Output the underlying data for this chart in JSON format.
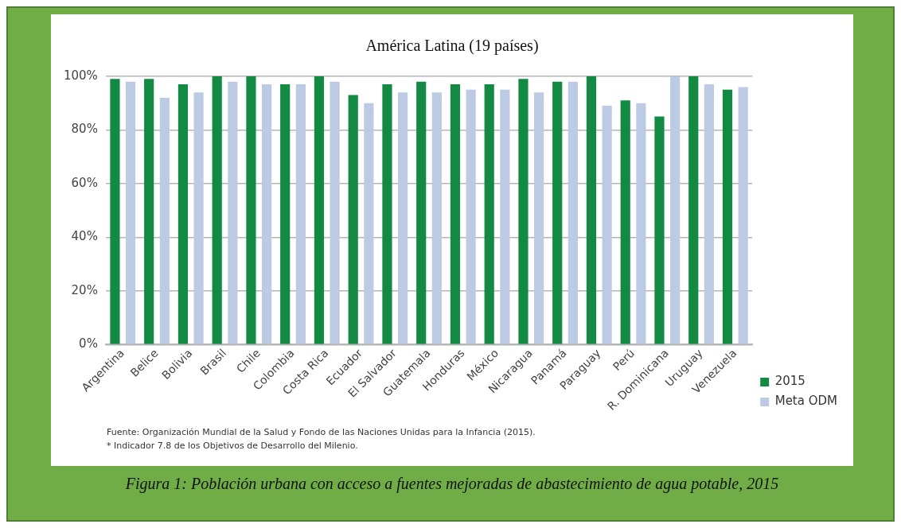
{
  "chart_data": {
    "type": "bar",
    "title": "América Latina (19 países)",
    "categories": [
      "Argentina",
      "Belice",
      "Bolivia",
      "Brasil",
      "Chile",
      "Colombia",
      "Costa Rica",
      "Ecuador",
      "El Salvador",
      "Guatemala",
      "Honduras",
      "México",
      "Nicaragua",
      "Panamá",
      "Paraguay",
      "Perú",
      "R. Dominicana",
      "Uruguay",
      "Venezuela"
    ],
    "series": [
      {
        "name": "2015",
        "color": "#138a43",
        "values": [
          99,
          99,
          97,
          100,
          100,
          97,
          100,
          93,
          97,
          98,
          97,
          97,
          99,
          98,
          100,
          91,
          85,
          100,
          95
        ]
      },
      {
        "name": "Meta ODM",
        "color": "#bccbe3",
        "values": [
          98,
          92,
          94,
          98,
          97,
          97,
          98,
          90,
          94,
          94,
          95,
          95,
          94,
          98,
          89,
          90,
          100,
          97,
          96
        ]
      }
    ],
    "ylim": [
      0,
      100
    ],
    "yticks": [
      {
        "value": 0,
        "label": "0%"
      },
      {
        "value": 20,
        "label": "20%"
      },
      {
        "value": 40,
        "label": "40%"
      },
      {
        "value": 60,
        "label": "60%"
      },
      {
        "value": 80,
        "label": "80%"
      },
      {
        "value": 100,
        "label": "100%"
      }
    ],
    "grid": "y",
    "legend": "bottom right",
    "annotations": [
      "Fuente: Organización Mundial de la Salud y Fondo de las Naciones Unidas para la Infancia (2015).",
      "* Indicador 7.8 de los Objetivos de Desarrollo del Milenio.",
      "Figura 1: Población urbana con acceso a fuentes mejoradas de abastecimiento de agua potable, 2015"
    ]
  }
}
